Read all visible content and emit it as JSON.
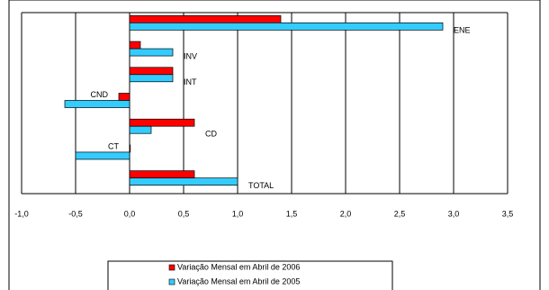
{
  "chart_data": {
    "type": "hbar",
    "categories": [
      "ENE",
      "INV",
      "INT",
      "CND",
      "CD",
      "CT",
      "TOTAL"
    ],
    "series": [
      {
        "name": "Variação Mensal em Abril de 2006",
        "color": "#ff0000",
        "values": [
          1.4,
          0.1,
          0.4,
          -0.1,
          0.6,
          0.0,
          0.6
        ]
      },
      {
        "name": "Variação Mensal em Abril de 2005",
        "color": "#33ccff",
        "values": [
          2.9,
          0.4,
          0.4,
          -0.6,
          0.2,
          -0.5,
          1.0
        ]
      }
    ],
    "xlim": [
      -1.0,
      3.5
    ],
    "xticks": [
      {
        "value": -1.0,
        "label": "-1,0"
      },
      {
        "value": -0.5,
        "label": "-0,5"
      },
      {
        "value": 0,
        "label": "0,0"
      },
      {
        "value": 0.5,
        "label": "0,5"
      },
      {
        "value": 1.0,
        "label": "1,0"
      },
      {
        "value": 1.5,
        "label": "1,5"
      },
      {
        "value": 2.0,
        "label": "2,0"
      },
      {
        "value": 2.5,
        "label": "2,5"
      },
      {
        "value": 3.0,
        "label": "3,0"
      },
      {
        "value": 3.5,
        "label": "3,5"
      }
    ],
    "grid": true
  }
}
